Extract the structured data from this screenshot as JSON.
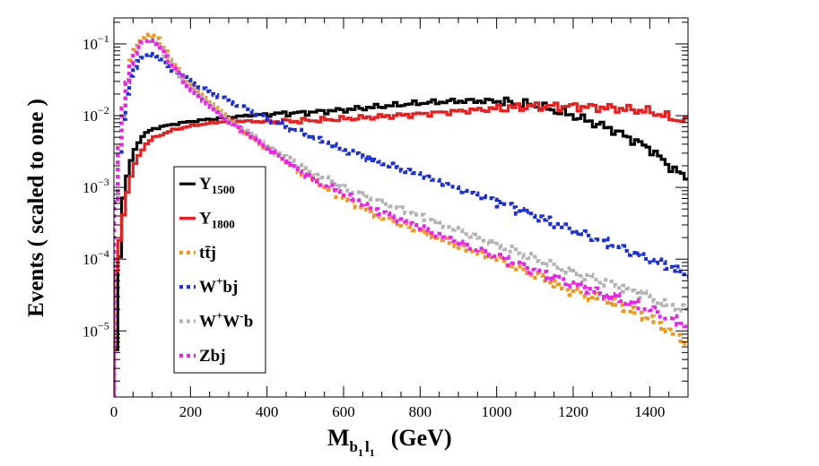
{
  "chart_data": {
    "type": "line",
    "xlabel": "M_{b1 l1}  (GeV)",
    "xlabel_parts": {
      "main": "M",
      "sub1": "b",
      "sub1sub": "1",
      "sub2": "l",
      "sub2sub": "1",
      "unit": "(GeV)"
    },
    "ylabel": "Events  ( scaled to one )",
    "xlim": [
      0,
      1500
    ],
    "ylim": [
      1.2e-06,
      0.23
    ],
    "yscale": "log",
    "x_ticks": [
      {
        "value": 0,
        "label": "0"
      },
      {
        "value": 200,
        "label": "200"
      },
      {
        "value": 400,
        "label": "400"
      },
      {
        "value": 600,
        "label": "600"
      },
      {
        "value": 800,
        "label": "800"
      },
      {
        "value": 1000,
        "label": "1000"
      },
      {
        "value": 1200,
        "label": "1200"
      },
      {
        "value": 1400,
        "label": "1400"
      }
    ],
    "y_ticks": [
      {
        "value": 0.1,
        "base": "10",
        "exp": "−1"
      },
      {
        "value": 0.01,
        "base": "10",
        "exp": "−2"
      },
      {
        "value": 0.001,
        "base": "10",
        "exp": "−3"
      },
      {
        "value": 0.0001,
        "base": "10",
        "exp": "−4"
      },
      {
        "value": 1e-05,
        "base": "10",
        "exp": "−5"
      }
    ],
    "legend_position": "center-left",
    "series": [
      {
        "name": "Y_1500",
        "legend": {
          "main": "Y",
          "sub": "1500"
        },
        "color": "#000000",
        "style": "solid",
        "x": [
          0,
          20,
          40,
          60,
          80,
          100,
          150,
          200,
          300,
          400,
          500,
          600,
          700,
          800,
          900,
          1000,
          1100,
          1200,
          1300,
          1400,
          1450,
          1500
        ],
        "y": [
          1.2e-06,
          0.0005,
          0.002,
          0.004,
          0.0055,
          0.0065,
          0.0075,
          0.0083,
          0.0095,
          0.0105,
          0.011,
          0.012,
          0.0135,
          0.015,
          0.016,
          0.016,
          0.014,
          0.01,
          0.0065,
          0.0035,
          0.002,
          0.0013
        ]
      },
      {
        "name": "Y_1800",
        "legend": {
          "main": "Y",
          "sub": "1800"
        },
        "color": "#ee1c1c",
        "style": "solid",
        "x": [
          0,
          20,
          40,
          60,
          80,
          100,
          150,
          200,
          300,
          400,
          500,
          600,
          700,
          800,
          900,
          1000,
          1100,
          1200,
          1300,
          1400,
          1450,
          1500
        ],
        "y": [
          4e-05,
          0.0003,
          0.0012,
          0.0025,
          0.0038,
          0.0048,
          0.0062,
          0.0072,
          0.0085,
          0.0082,
          0.0085,
          0.009,
          0.0097,
          0.0105,
          0.0115,
          0.0125,
          0.0135,
          0.0135,
          0.0128,
          0.0115,
          0.0095,
          0.008
        ]
      },
      {
        "name": "ttbar j",
        "legend": {
          "main": "tt̄j"
        },
        "color": "#f2961a",
        "style": "dotted",
        "x": [
          0,
          20,
          40,
          60,
          80,
          100,
          120,
          150,
          200,
          250,
          300,
          400,
          500,
          600,
          700,
          800,
          900,
          1000,
          1100,
          1200,
          1300,
          1400,
          1450,
          1500
        ],
        "y": [
          0.0003,
          0.008,
          0.05,
          0.1,
          0.13,
          0.14,
          0.11,
          0.055,
          0.026,
          0.015,
          0.009,
          0.0035,
          0.0015,
          0.0007,
          0.00038,
          0.00025,
          0.00015,
          0.0001,
          6e-05,
          3.5e-05,
          2.5e-05,
          1.5e-05,
          1e-05,
          7e-06
        ]
      },
      {
        "name": "W+ bj",
        "legend": {
          "main": "W",
          "sup": "+",
          "tail": "bj"
        },
        "color": "#1a2ee0",
        "style": "dotted",
        "x": [
          0,
          20,
          40,
          60,
          80,
          100,
          120,
          150,
          200,
          250,
          300,
          400,
          500,
          600,
          700,
          800,
          900,
          1000,
          1100,
          1200,
          1300,
          1400,
          1450,
          1500
        ],
        "y": [
          0.0003,
          0.006,
          0.03,
          0.055,
          0.068,
          0.072,
          0.065,
          0.045,
          0.03,
          0.021,
          0.016,
          0.009,
          0.0055,
          0.0034,
          0.0022,
          0.0015,
          0.00095,
          0.00065,
          0.0004,
          0.00025,
          0.00016,
          0.0001,
          8e-05,
          6e-05
        ]
      },
      {
        "name": "W+W- b",
        "legend": {
          "main": "W",
          "sup": "+",
          "mid": "W",
          "sup2": "-",
          "tail": "b"
        },
        "color": "#b3b3b3",
        "style": "dotted",
        "x": [
          0,
          20,
          40,
          60,
          80,
          100,
          120,
          150,
          200,
          250,
          300,
          400,
          500,
          600,
          700,
          800,
          900,
          1000,
          1100,
          1200,
          1300,
          1400,
          1450,
          1500
        ],
        "y": [
          0.0003,
          0.008,
          0.045,
          0.085,
          0.11,
          0.115,
          0.095,
          0.05,
          0.025,
          0.0145,
          0.009,
          0.0038,
          0.0018,
          0.001,
          0.00062,
          0.0004,
          0.00025,
          0.00016,
          0.0001,
          6.5e-05,
          4.5e-05,
          3e-05,
          2.2e-05,
          2e-05
        ]
      },
      {
        "name": "Zbj",
        "legend": {
          "main": "Zbj"
        },
        "color": "#f01ef0",
        "style": "dotted",
        "x": [
          0,
          20,
          40,
          60,
          80,
          100,
          120,
          150,
          200,
          250,
          300,
          400,
          500,
          600,
          700,
          800,
          900,
          1000,
          1100,
          1200,
          1300,
          1400,
          1450,
          1500
        ],
        "y": [
          0.0003,
          0.008,
          0.045,
          0.085,
          0.11,
          0.115,
          0.095,
          0.05,
          0.024,
          0.014,
          0.0085,
          0.0034,
          0.0015,
          0.0008,
          0.00045,
          0.00028,
          0.00017,
          0.00011,
          7e-05,
          4.5e-05,
          3e-05,
          2e-05,
          1.5e-05,
          1.2e-05
        ]
      }
    ]
  }
}
